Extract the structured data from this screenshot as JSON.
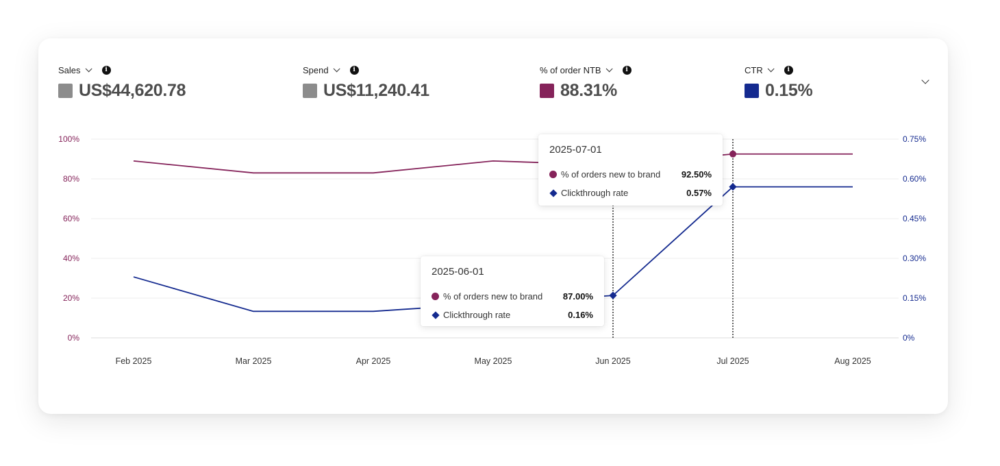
{
  "metrics": [
    {
      "label": "Sales",
      "value": "US$44,620.78",
      "color": "#8c8c8c"
    },
    {
      "label": "Spend",
      "value": "US$11,240.41",
      "color": "#8c8c8c"
    },
    {
      "label": "% of order NTB",
      "value": "88.31%",
      "color": "#85235a"
    },
    {
      "label": "CTR",
      "value": "0.15%",
      "color": "#142a8f"
    }
  ],
  "chart_data": {
    "type": "line",
    "x": [
      "Feb 2025",
      "Mar 2025",
      "Apr 2025",
      "May 2025",
      "Jun 2025",
      "Jul 2025",
      "Aug 2025"
    ],
    "y_left_ticks": [
      "100%",
      "80%",
      "60%",
      "40%",
      "20%",
      "0%"
    ],
    "y_right_ticks": [
      "0.75%",
      "0.60%",
      "0.45%",
      "0.30%",
      "0.15%",
      "0%"
    ],
    "ylim_left": [
      0,
      100
    ],
    "ylim_right": [
      0,
      0.75
    ],
    "grid": true,
    "series": [
      {
        "name": "% of orders new to brand",
        "axis": "left",
        "color": "#85235a",
        "marker": "circle",
        "values": [
          89,
          83,
          83,
          89,
          87,
          92.5,
          92.5
        ]
      },
      {
        "name": "Clickthrough rate",
        "axis": "right",
        "color": "#142a8f",
        "marker": "diamond",
        "values": [
          0.23,
          0.1,
          0.1,
          0.13,
          0.16,
          0.57,
          0.57
        ]
      }
    ],
    "hover_points": [
      4,
      5
    ]
  },
  "tooltips": [
    {
      "date": "2025-07-01",
      "rows": [
        {
          "name": "% of orders new to brand",
          "value": "92.50%",
          "color": "#85235a",
          "marker": "circle"
        },
        {
          "name": "Clickthrough rate",
          "value": "0.57%",
          "color": "#142a8f",
          "marker": "diamond"
        }
      ]
    },
    {
      "date": "2025-06-01",
      "rows": [
        {
          "name": "% of orders new to brand",
          "value": "87.00%",
          "color": "#85235a",
          "marker": "circle"
        },
        {
          "name": "Clickthrough rate",
          "value": "0.16%",
          "color": "#142a8f",
          "marker": "diamond"
        }
      ]
    }
  ]
}
